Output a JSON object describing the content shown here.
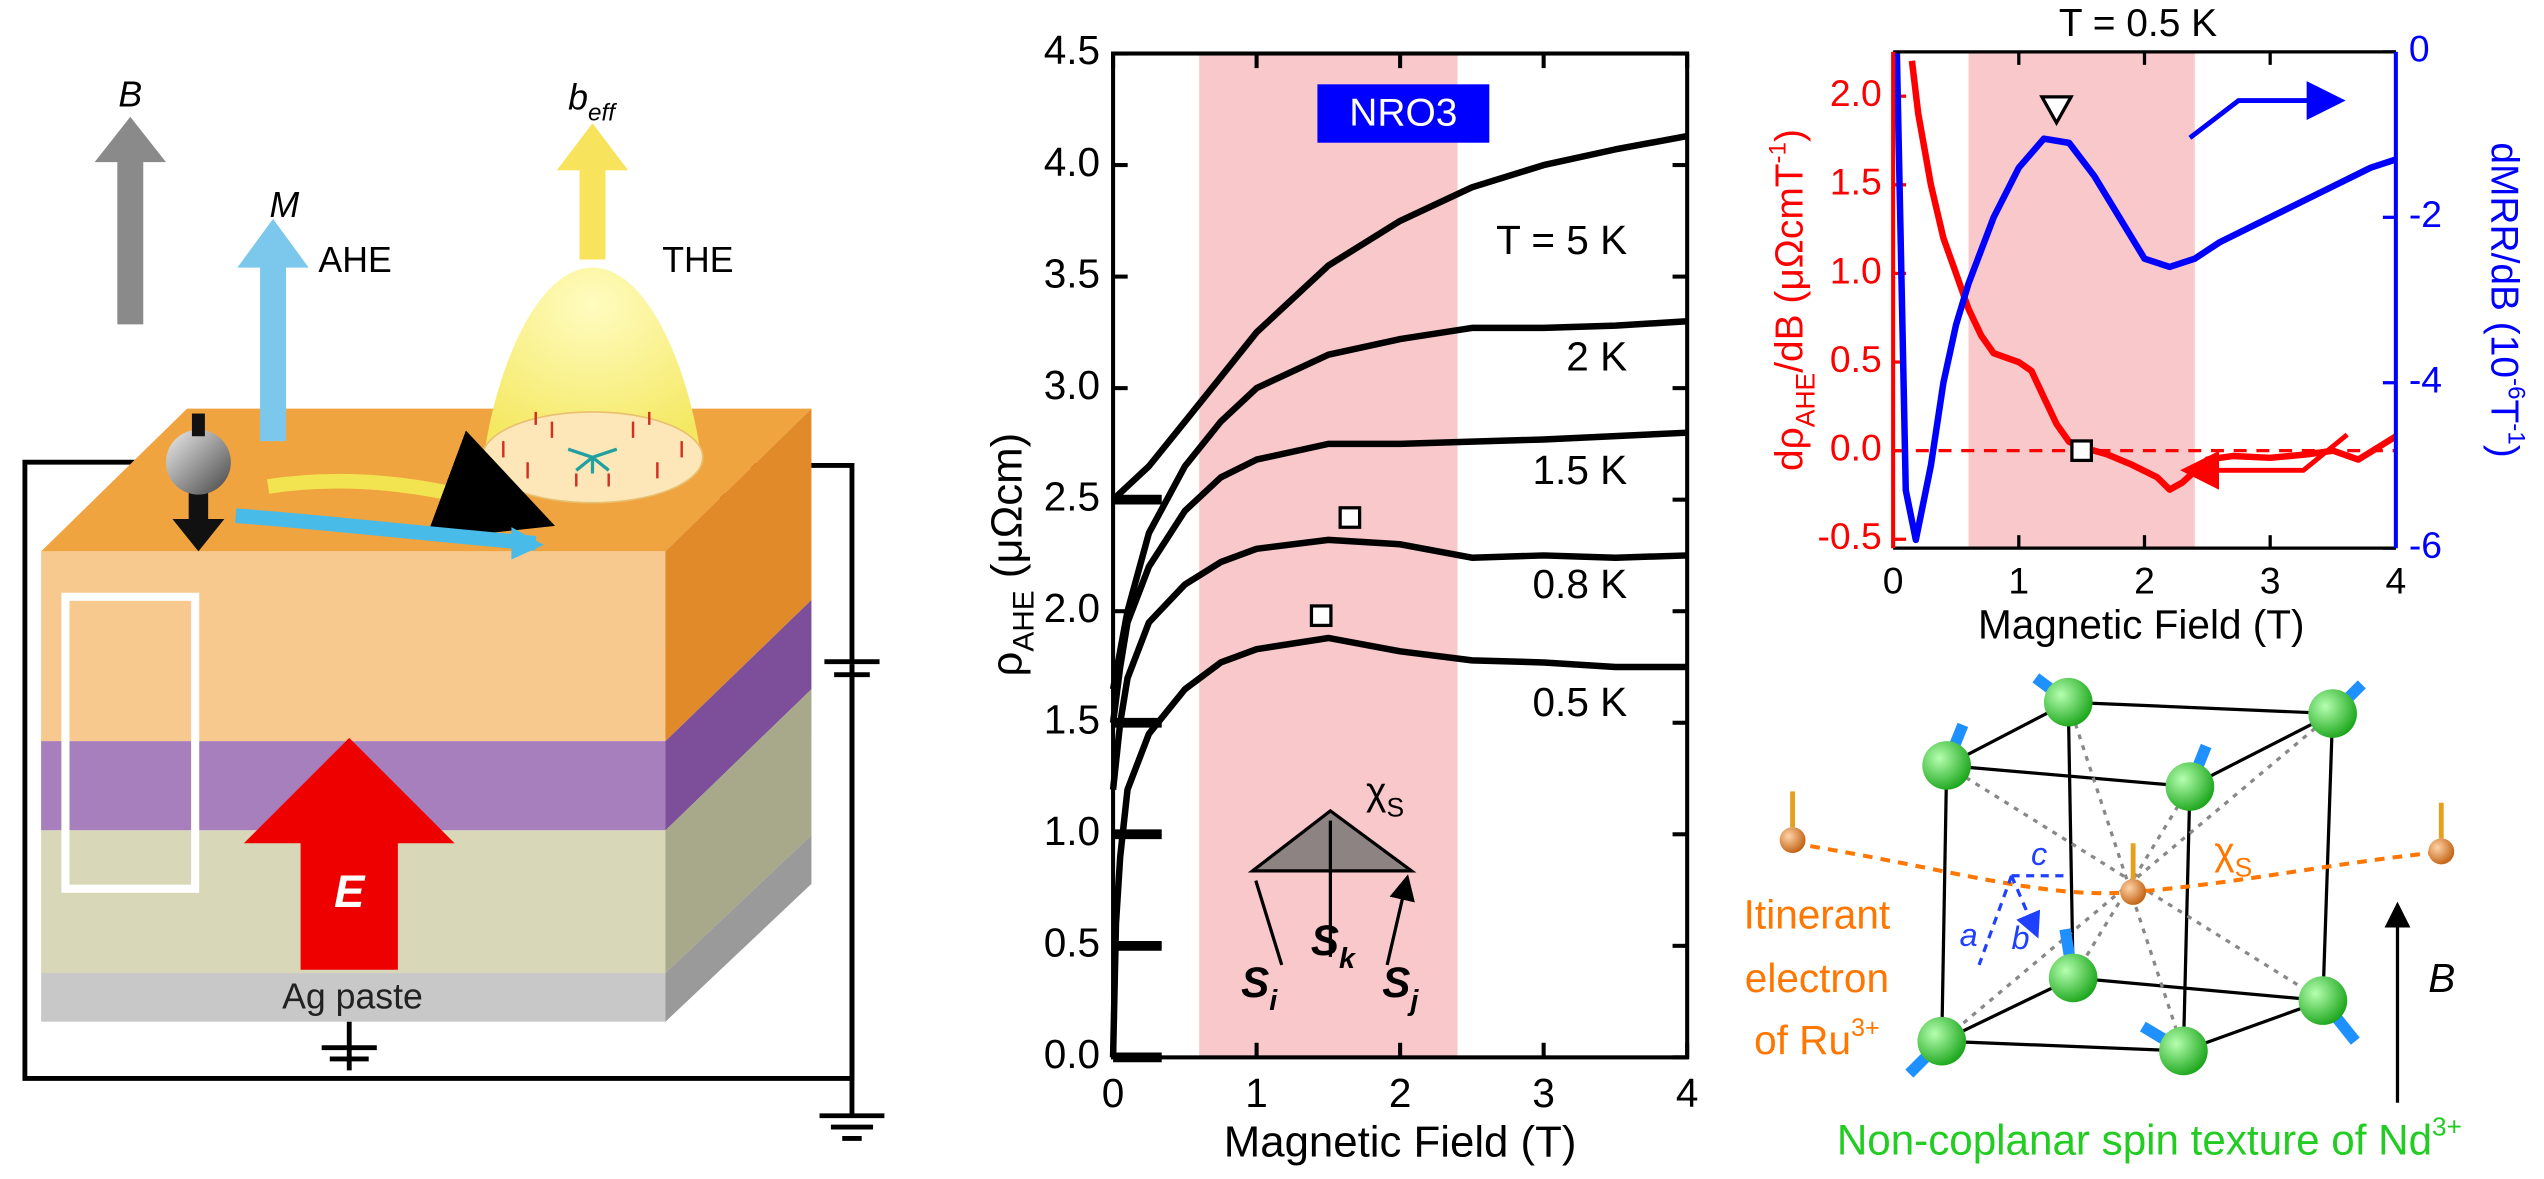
{
  "chart_data": [
    {
      "type": "line",
      "inset_label": "NRO3",
      "xlabel": "Magnetic Field (T)",
      "ylabel": [
        {
          "t": "ρ"
        },
        {
          "t": "AHE",
          "sub": true
        },
        {
          "t": " (μΩcm)"
        }
      ],
      "xlim": [
        0,
        4
      ],
      "ylim": [
        0,
        4.5
      ],
      "xticks": [
        0,
        1,
        2,
        3,
        4
      ],
      "yticks": [
        {
          "value": 0,
          "label": "0.0"
        },
        0.5,
        {
          "value": 1,
          "label": "1.0"
        },
        1.5,
        {
          "value": 2,
          "label": "2.0"
        },
        2.5,
        {
          "value": 3,
          "label": "3.0"
        },
        3.5,
        {
          "value": 4,
          "label": "4.0"
        },
        4.5
      ],
      "shaded_range": [
        0.6,
        2.4
      ],
      "shade_color": "#f8c8cb",
      "offsets": [
        0,
        0.5,
        1,
        1.5,
        2.5
      ],
      "series": [
        {
          "name": "T = 5 K",
          "color": "#000000",
          "x": [
            0,
            0.25,
            0.5,
            0.75,
            1,
            1.5,
            2,
            2.5,
            3,
            3.5,
            4
          ],
          "values": [
            2.5,
            2.65,
            2.85,
            3.05,
            3.25,
            3.55,
            3.75,
            3.9,
            4.0,
            4.07,
            4.13
          ]
        },
        {
          "name": "2 K",
          "color": "#000000",
          "x": [
            0,
            0.1,
            0.25,
            0.5,
            0.75,
            1,
            1.5,
            2,
            2.5,
            3,
            3.5,
            4
          ],
          "values": [
            1.65,
            2.0,
            2.35,
            2.65,
            2.85,
            3.0,
            3.15,
            3.22,
            3.27,
            3.27,
            3.28,
            3.3
          ]
        },
        {
          "name": "1.5 K",
          "color": "#000000",
          "x": [
            0,
            0.05,
            0.1,
            0.25,
            0.5,
            0.75,
            1,
            1.5,
            2,
            2.5,
            3,
            4
          ],
          "values": [
            1.5,
            1.75,
            1.95,
            2.2,
            2.45,
            2.6,
            2.68,
            2.75,
            2.75,
            2.76,
            2.77,
            2.8
          ]
        },
        {
          "name": "0.8 K",
          "color": "#000000",
          "x": [
            0,
            0.05,
            0.1,
            0.25,
            0.5,
            0.75,
            1,
            1.5,
            2,
            2.5,
            3,
            3.5,
            4
          ],
          "values": [
            1.2,
            1.5,
            1.7,
            1.95,
            2.12,
            2.22,
            2.28,
            2.32,
            2.3,
            2.24,
            2.25,
            2.24,
            2.25
          ]
        },
        {
          "name": "0.5 K",
          "color": "#000000",
          "x": [
            0,
            0.02,
            0.05,
            0.1,
            0.25,
            0.5,
            0.75,
            1,
            1.5,
            2,
            2.5,
            3,
            3.5,
            4
          ],
          "values": [
            0,
            0.6,
            0.9,
            1.2,
            1.45,
            1.65,
            1.77,
            1.83,
            1.88,
            1.82,
            1.78,
            1.77,
            1.75,
            1.75
          ]
        }
      ],
      "square_markers": [
        {
          "x": 1.65,
          "y": 2.42
        },
        {
          "x": 1.45,
          "y": 1.98
        }
      ],
      "spin_triangle": {
        "apex": [
          {
            "t": "χ"
          },
          {
            "t": "S",
            "sub": true
          }
        ],
        "spins": [
          [
            {
              "t": "S"
            },
            {
              "t": "i",
              "sub": true
            }
          ],
          [
            {
              "t": "S"
            },
            {
              "t": "k",
              "sub": true
            }
          ],
          [
            {
              "t": "S"
            },
            {
              "t": "j",
              "sub": true
            }
          ]
        ]
      }
    },
    {
      "type": "dual_line",
      "title": "T = 0.5 K",
      "xlabel": "Magnetic Field (T)",
      "ylabel": [
        {
          "t": "dρ"
        },
        {
          "t": "AHE",
          "sub": true
        },
        {
          "t": "/dB (μΩcmT"
        },
        {
          "t": "-1",
          "sup": true
        },
        {
          "t": ")"
        }
      ],
      "y2label": [
        {
          "t": "dMRR/dB (10"
        },
        {
          "t": "-6",
          "sup": true
        },
        {
          "t": "T"
        },
        {
          "t": "-1",
          "sup": true
        },
        {
          "t": ")"
        }
      ],
      "xlim": [
        0,
        4
      ],
      "ylim": [
        -0.55,
        2.25
      ],
      "y2lim": [
        -6,
        0
      ],
      "xticks": [
        0,
        1,
        2,
        3,
        4
      ],
      "yticks": [
        -0.5,
        {
          "value": 0,
          "label": "0.0"
        },
        0.5,
        {
          "value": 1,
          "label": "1.0"
        },
        1.5,
        {
          "value": 2,
          "label": "2.0"
        }
      ],
      "y2ticks": [
        -6,
        -4,
        -2,
        0
      ],
      "y_color": "#ff0000",
      "y2_color": "#0000ff",
      "shaded_range": [
        0.6,
        2.4
      ],
      "shade_color": "#f8c8cb",
      "zero_line": true,
      "series": [
        {
          "color": "#ff0000",
          "x": [
            0.15,
            0.2,
            0.3,
            0.4,
            0.5,
            0.6,
            0.7,
            0.8,
            1,
            1.1,
            1.2,
            1.3,
            1.4,
            1.5,
            1.7,
            1.9,
            2.1,
            2.2,
            2.3,
            2.5,
            2.7,
            3,
            3.3,
            3.5,
            3.7,
            4
          ],
          "values": [
            2.2,
            1.9,
            1.5,
            1.2,
            1.0,
            0.8,
            0.65,
            0.55,
            0.5,
            0.45,
            0.3,
            0.15,
            0.05,
            0.02,
            -0.02,
            -0.08,
            -0.15,
            -0.22,
            -0.18,
            -0.05,
            -0.03,
            -0.04,
            -0.02,
            0.0,
            -0.05,
            0.08
          ]
        },
        {
          "color": "#0000ff",
          "axis": "y2",
          "x": [
            0.03,
            0.1,
            0.18,
            0.3,
            0.4,
            0.5,
            0.6,
            0.8,
            1,
            1.2,
            1.4,
            1.6,
            1.8,
            2,
            2.2,
            2.4,
            2.6,
            3,
            3.4,
            3.8,
            4
          ],
          "values": [
            0,
            -5.3,
            -5.9,
            -5.0,
            -4.0,
            -3.3,
            -2.8,
            -2.0,
            -1.4,
            -1.05,
            -1.1,
            -1.5,
            -2.0,
            -2.5,
            -2.6,
            -2.5,
            -2.3,
            -2.0,
            -1.7,
            -1.4,
            -1.3
          ]
        }
      ],
      "triangle_marker": {
        "x": 1.3,
        "y2": -0.7
      },
      "square_marker": {
        "x": 1.5,
        "y": 0
      }
    }
  ],
  "schematic": {
    "B": "B",
    "M": "M",
    "AHE": "AHE",
    "beff": [
      {
        "t": "b"
      },
      {
        "t": "eff",
        "sub": true
      }
    ],
    "THE": "THE",
    "E": "E",
    "ag_paste": "Ag paste"
  },
  "lattice": {
    "chi": [
      {
        "t": "χ"
      },
      {
        "t": "S",
        "sub": true
      }
    ],
    "a": "a",
    "b": "b",
    "c": "c",
    "line1": "Itinerant",
    "line2": "electron",
    "line3": [
      {
        "t": "of Ru"
      },
      {
        "t": "3+",
        "sup": true
      }
    ],
    "B": "B",
    "caption": [
      {
        "t": "Non-coplanar spin texture of Nd"
      },
      {
        "t": "3+",
        "sup": true
      }
    ]
  }
}
